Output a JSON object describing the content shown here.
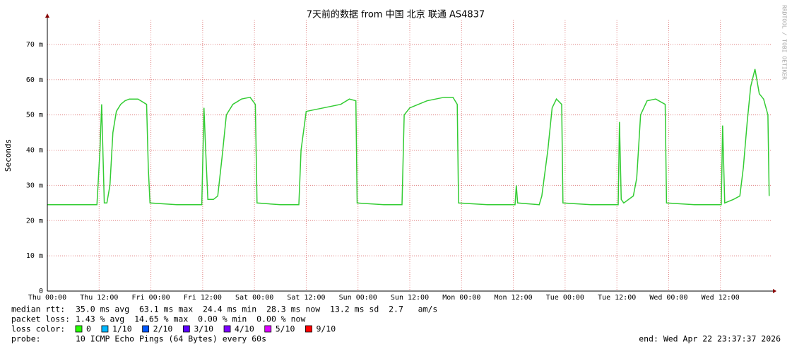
{
  "chart_data": {
    "type": "line",
    "title": "7天前的数据 from 中国 北京 联通 AS4837",
    "y_label": "Seconds",
    "watermark": "RRDTOOL / TOBI OETIKER",
    "xlim": [
      0,
      168
    ],
    "ylim": [
      0,
      77
    ],
    "xticks": [
      {
        "value": 0,
        "label": "Thu 00:00"
      },
      {
        "value": 12,
        "label": "Thu 12:00"
      },
      {
        "value": 24,
        "label": "Fri 00:00"
      },
      {
        "value": 36,
        "label": "Fri 12:00"
      },
      {
        "value": 48,
        "label": "Sat 00:00"
      },
      {
        "value": 60,
        "label": "Sat 12:00"
      },
      {
        "value": 72,
        "label": "Sun 00:00"
      },
      {
        "value": 84,
        "label": "Sun 12:00"
      },
      {
        "value": 96,
        "label": "Mon 00:00"
      },
      {
        "value": 108,
        "label": "Mon 12:00"
      },
      {
        "value": 120,
        "label": "Tue 00:00"
      },
      {
        "value": 132,
        "label": "Tue 12:00"
      },
      {
        "value": 144,
        "label": "Wed 00:00"
      },
      {
        "value": 156,
        "label": "Wed 12:00"
      }
    ],
    "yticks": [
      0,
      {
        "value": 10,
        "label": "10 m"
      },
      {
        "value": 20,
        "label": "20 m"
      },
      {
        "value": 30,
        "label": "30 m"
      },
      {
        "value": 40,
        "label": "40 m"
      },
      {
        "value": 50,
        "label": "50 m"
      },
      {
        "value": 60,
        "label": "60 m"
      },
      {
        "value": 70,
        "label": "70 m"
      }
    ],
    "grid": true,
    "x": [
      0,
      6,
      11.5,
      12.2,
      12.6,
      13.2,
      13.8,
      14.5,
      15.2,
      16,
      17,
      18,
      19,
      21,
      23,
      23.4,
      23.8,
      30,
      35.8,
      36.3,
      36.7,
      37.2,
      38.5,
      39.5,
      40.5,
      41.5,
      43,
      45,
      47,
      48.2,
      48.6,
      54,
      58.3,
      58.8,
      60,
      62,
      64,
      66,
      68,
      70,
      71.5,
      71.8,
      78,
      82.2,
      82.7,
      84,
      86,
      88,
      90,
      92,
      94,
      95,
      95.3,
      102,
      108.4,
      108.7,
      109,
      114,
      114.6,
      116,
      117,
      118,
      119.2,
      119.5,
      126,
      132.3,
      132.6,
      133,
      133.6,
      135.8,
      136.6,
      137.5,
      139,
      141,
      143.2,
      143.5,
      150,
      156.2,
      156.5,
      157,
      159,
      160.5,
      161.3,
      162.2,
      163,
      164,
      165,
      166,
      167,
      167.3
    ],
    "series": [
      {
        "name": "median rtt",
        "color": "#33cc33",
        "values": [
          24.5,
          24.5,
          24.5,
          40,
          53,
          25,
          25,
          30,
          45,
          51,
          53,
          54,
          54.5,
          54.5,
          53,
          35,
          25,
          24.5,
          24.5,
          52,
          40,
          26,
          26,
          27,
          38,
          50,
          53,
          54.5,
          55,
          53,
          25,
          24.5,
          24.5,
          40,
          51,
          51.5,
          52,
          52.5,
          53,
          54.5,
          54,
          25,
          24.5,
          24.5,
          50,
          52,
          53,
          54,
          54.5,
          55,
          55,
          53,
          25,
          24.5,
          24.5,
          30,
          25,
          24.5,
          27,
          40,
          52,
          54.5,
          53,
          25,
          24.5,
          24.5,
          48,
          26,
          25,
          27,
          32,
          50,
          54,
          54.5,
          53,
          25,
          24.5,
          24.5,
          47,
          25,
          26,
          27,
          35,
          48,
          58,
          63,
          56,
          54.5,
          50,
          27
        ]
      }
    ]
  },
  "footer": {
    "rtt_label": "median rtt:",
    "rtt_text": "35.0 ms avg  63.1 ms max  24.4 ms min  28.3 ms now  13.2 ms sd  2.7   am/s",
    "loss_label": "packet loss:",
    "loss_text": "1.43 % avg  14.65 % max  0.00 % min  0.00 % now",
    "color_label": "loss color:",
    "loss_colors": [
      {
        "name": "0",
        "color": "#26ff00"
      },
      {
        "name": "1/10",
        "color": "#00b8ff"
      },
      {
        "name": "2/10",
        "color": "#0059ff"
      },
      {
        "name": "3/10",
        "color": "#5e00ff"
      },
      {
        "name": "4/10",
        "color": "#7e00ff"
      },
      {
        "name": "5/10",
        "color": "#dd00ff"
      },
      {
        "name": "9/10",
        "color": "#ff0000"
      }
    ],
    "probe_label": "probe:",
    "probe_text": "10 ICMP Echo Pings (64 Bytes) every 60s",
    "end_text": "end: Wed Apr 22 23:37:37 2026"
  }
}
